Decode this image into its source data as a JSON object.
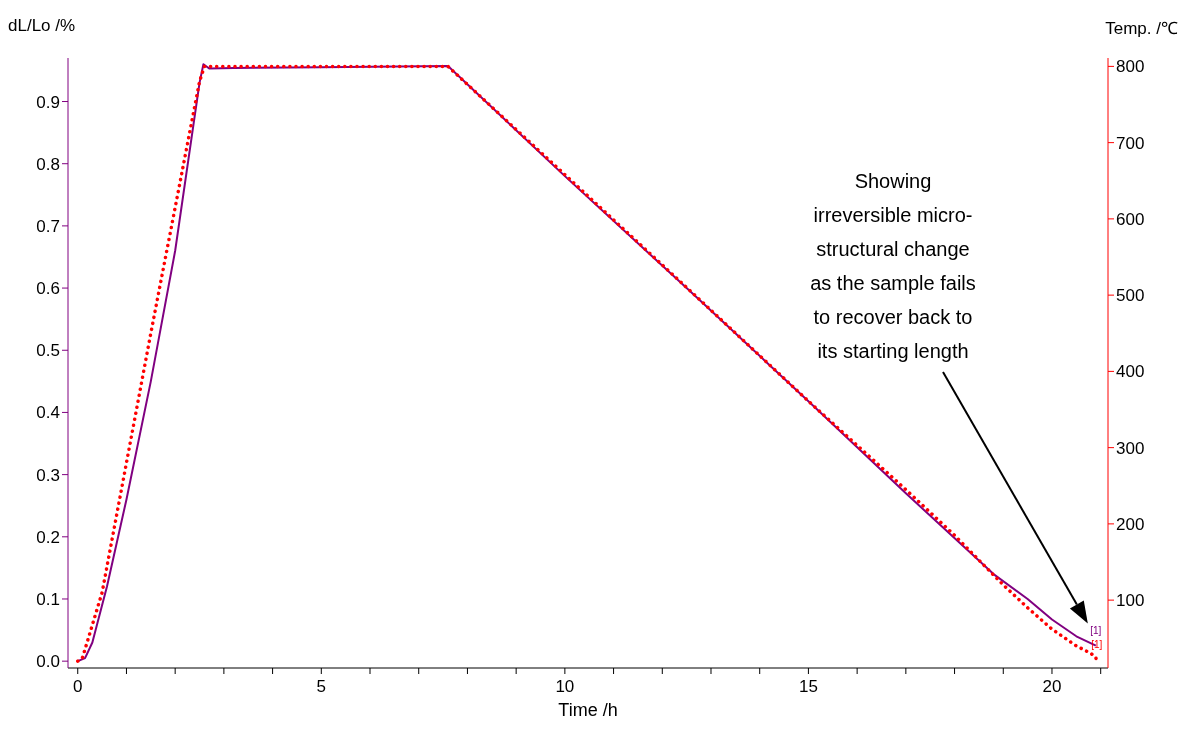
{
  "chart_data": {
    "type": "line",
    "xlabel": "Time /h",
    "ylabel": "dL/Lo /%",
    "y2label": "Temp. /℃",
    "xlim": [
      -0.2,
      21.15
    ],
    "xticks": [
      0,
      {
        "value": 1,
        "label": null
      },
      {
        "value": 2,
        "label": null
      },
      {
        "value": 3,
        "label": null
      },
      {
        "value": 4,
        "label": null
      },
      5,
      {
        "value": 6,
        "label": null
      },
      {
        "value": 7,
        "label": null
      },
      {
        "value": 8,
        "label": null
      },
      {
        "value": 9,
        "label": null
      },
      10,
      {
        "value": 11,
        "label": null
      },
      {
        "value": 12,
        "label": null
      },
      {
        "value": 13,
        "label": null
      },
      {
        "value": 14,
        "label": null
      },
      15,
      {
        "value": 16,
        "label": null
      },
      {
        "value": 17,
        "label": null
      },
      {
        "value": 18,
        "label": null
      },
      {
        "value": 19,
        "label": null
      },
      20,
      {
        "value": 21,
        "label": null
      }
    ],
    "ylim": [
      -0.011,
      0.97
    ],
    "yticks": [
      {
        "value": 0,
        "label": "0.0"
      },
      0.1,
      0.2,
      0.3,
      0.4,
      0.5,
      0.6,
      0.7,
      0.8,
      0.9
    ],
    "y2lim": [
      11,
      811
    ],
    "y2ticks": [
      100,
      200,
      300,
      400,
      500,
      600,
      700,
      800
    ],
    "marker": "none",
    "series": [
      {
        "color": "#800080",
        "line_style": "solid",
        "x": [
          0,
          0.15,
          0.3,
          0.6,
          1,
          1.5,
          2,
          2.5,
          2.58,
          2.7,
          3.2,
          5,
          7.6,
          10,
          12.5,
          15,
          17,
          18.8,
          19.5,
          20,
          20.5,
          20.9
        ],
        "values": [
          0,
          0.005,
          0.03,
          0.12,
          0.26,
          0.45,
          0.66,
          0.93,
          0.96,
          0.953,
          0.954,
          0.955,
          0.957,
          0.78,
          0.6,
          0.418,
          0.27,
          0.14,
          0.1,
          0.067,
          0.04,
          0.025
        ]
      },
      {
        "color": "#ff0000",
        "line_style": "dotted",
        "axis": "y2",
        "x": [
          0,
          0.1,
          0.5,
          1,
          1.5,
          2,
          2.5,
          2.6,
          7.6,
          10,
          12.5,
          15,
          17,
          18,
          19,
          19.5,
          20,
          20.5,
          20.8,
          20.9,
          20.92
        ],
        "values": [
          20,
          25,
          110,
          280,
          450,
          615,
          780,
          800,
          800,
          658,
          510,
          361,
          245,
          185,
          120,
          90,
          62,
          40,
          30,
          25,
          18
        ]
      }
    ],
    "annotations": [
      "Showing\nirreversible micro-\nstructural change\nas the sample fails\nto recover back to\nits starting length",
      "[1]",
      "[1]"
    ]
  }
}
